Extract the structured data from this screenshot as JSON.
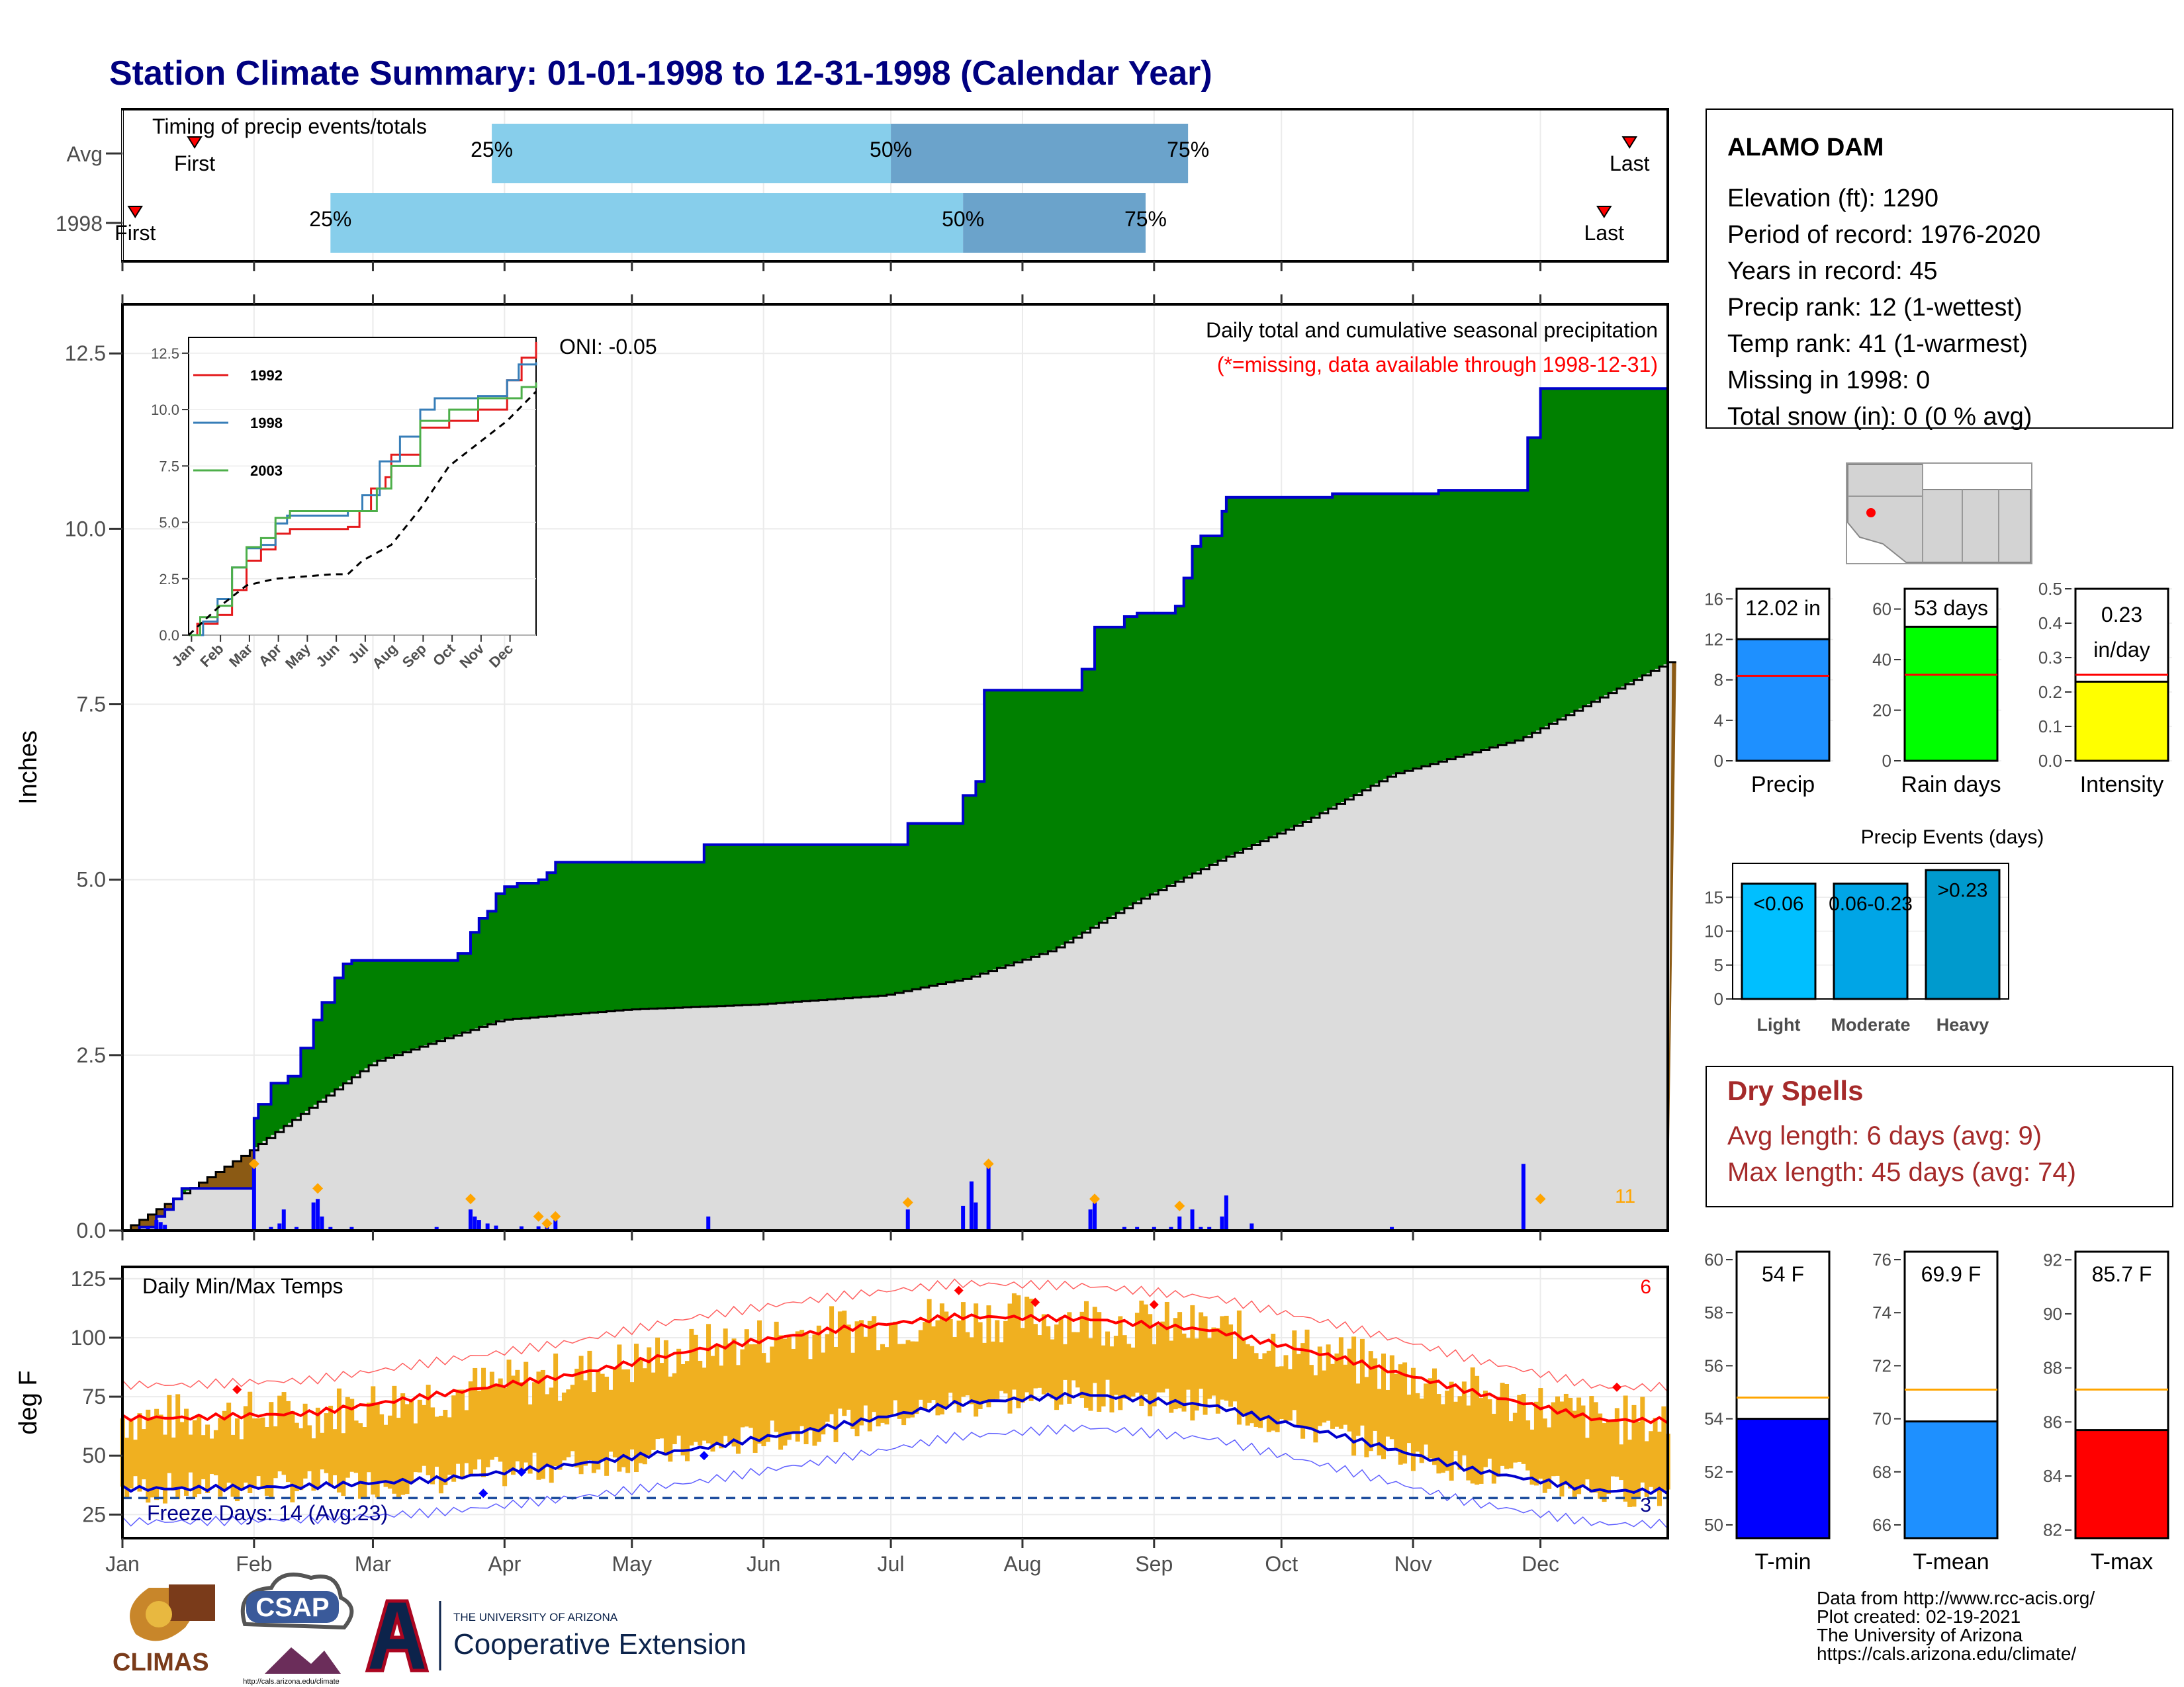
{
  "title": "Station Climate Summary: 01-01-1998 to 12-31-1998 (Calendar Year)",
  "colors": {
    "title": "#000080",
    "green_fill": "#008000",
    "cum_line": "#0000cd",
    "normal_fill": "#dcdcdc",
    "deficit_fill": "#8b5a14",
    "bar_daily": "#0000ff",
    "marker": "#ffa500",
    "temp_bar": "#f0b020",
    "tmax_line": "#ff0000",
    "tmin_line": "#0000cd",
    "dry_red": "#a52a2a",
    "q_light": "#87ceeb",
    "q_dark": "#6ba3cb"
  },
  "timing": {
    "title": "Timing of precip events/totals",
    "rows": [
      {
        "label": "Avg",
        "first_label": "First",
        "last_label": "Last",
        "first_day": 18,
        "last_day": 356,
        "q25": 88,
        "q50": 182,
        "q75": 252,
        "q25_label": "25%",
        "q50_label": "50%",
        "q75_label": "75%"
      },
      {
        "label": "1998",
        "first_label": "First",
        "last_label": "Last",
        "first_day": 4,
        "last_day": 350,
        "q25": 50,
        "q50": 199,
        "q75": 242,
        "q25_label": "25%",
        "q50_label": "50%",
        "q75_label": "75%"
      }
    ]
  },
  "station": {
    "name": "ALAMO DAM",
    "lines": [
      "Elevation (ft): 1290",
      "Period of record: 1976-2020",
      "Years in record: 45",
      "Precip rank: 12 (1-wettest)",
      "Temp rank: 41 (1-warmest)",
      "Missing in 1998: 0",
      "Total snow (in): 0 (0 % avg)"
    ]
  },
  "precip_panel": {
    "ylabel": "Inches",
    "yticks": [
      "0.0",
      "2.5",
      "5.0",
      "7.5",
      "10.0",
      "12.5"
    ],
    "header": "Daily total and cumulative seasonal precipitation",
    "missing_note": "(*=missing, data available through 1998-12-31)",
    "oni": "ONI: -0.05",
    "count_label": "11"
  },
  "inset": {
    "yticks": [
      "0.0",
      "2.5",
      "5.0",
      "7.5",
      "10.0",
      "12.5"
    ],
    "xticks": [
      "Jan",
      "Feb",
      "Mar",
      "Apr",
      "May",
      "Jun",
      "Jul",
      "Aug",
      "Sep",
      "Oct",
      "Nov",
      "Dec"
    ],
    "legend": [
      {
        "name": "1992",
        "color": "#e41a1c"
      },
      {
        "name": "1998",
        "color": "#377eb8"
      },
      {
        "name": "2003",
        "color": "#4daf4a"
      }
    ]
  },
  "temp_panel": {
    "ylabel": "deg F",
    "yticks": [
      "25",
      "50",
      "75",
      "100",
      "125"
    ],
    "title": "Daily Min/Max Temps",
    "freeze": "Freeze Days: 14 (Avg:23)",
    "count_top": "6",
    "count_bottom": "3"
  },
  "months": [
    "Jan",
    "Feb",
    "Mar",
    "Apr",
    "May",
    "Jun",
    "Jul",
    "Aug",
    "Sep",
    "Oct",
    "Nov",
    "Dec"
  ],
  "chart_data": [
    {
      "type": "area",
      "title": "Daily total and cumulative seasonal precipitation",
      "ylabel": "Inches",
      "ylim": [
        0,
        13.2
      ],
      "cumulative_1998_steps": [
        [
          1,
          0.0
        ],
        [
          5,
          0.05
        ],
        [
          9,
          0.2
        ],
        [
          11,
          0.3
        ],
        [
          13,
          0.45
        ],
        [
          15,
          0.6
        ],
        [
          32,
          1.6
        ],
        [
          33,
          1.8
        ],
        [
          36,
          2.1
        ],
        [
          40,
          2.2
        ],
        [
          43,
          2.6
        ],
        [
          46,
          3.0
        ],
        [
          48,
          3.25
        ],
        [
          51,
          3.6
        ],
        [
          53,
          3.8
        ],
        [
          55,
          3.85
        ],
        [
          74,
          3.85
        ],
        [
          80,
          3.95
        ],
        [
          83,
          4.25
        ],
        [
          85,
          4.45
        ],
        [
          87,
          4.55
        ],
        [
          89,
          4.8
        ],
        [
          91,
          4.9
        ],
        [
          94,
          4.95
        ],
        [
          99,
          5.0
        ],
        [
          101,
          5.1
        ],
        [
          103,
          5.25
        ],
        [
          138,
          5.5
        ],
        [
          186,
          5.8
        ],
        [
          199,
          6.2
        ],
        [
          202,
          6.4
        ],
        [
          204,
          7.7
        ],
        [
          227,
          8.0
        ],
        [
          230,
          8.6
        ],
        [
          237,
          8.75
        ],
        [
          240,
          8.8
        ],
        [
          249,
          8.9
        ],
        [
          251,
          9.3
        ],
        [
          253,
          9.75
        ],
        [
          255,
          9.9
        ],
        [
          260,
          10.25
        ],
        [
          261,
          10.45
        ],
        [
          286,
          10.5
        ],
        [
          311,
          10.55
        ],
        [
          332,
          11.3
        ],
        [
          335,
          12.0
        ],
        [
          365,
          12.0
        ]
      ],
      "average_cumulative_points": [
        [
          1,
          0.0
        ],
        [
          30,
          1.1
        ],
        [
          60,
          2.4
        ],
        [
          90,
          3.0
        ],
        [
          120,
          3.15
        ],
        [
          150,
          3.22
        ],
        [
          180,
          3.35
        ],
        [
          200,
          3.6
        ],
        [
          220,
          4.0
        ],
        [
          240,
          4.7
        ],
        [
          260,
          5.3
        ],
        [
          280,
          5.85
        ],
        [
          300,
          6.5
        ],
        [
          330,
          7.0
        ],
        [
          365,
          8.1
        ]
      ],
      "daily_bars_inches": [
        [
          7,
          0.05
        ],
        [
          9,
          0.15
        ],
        [
          10,
          0.12
        ],
        [
          11,
          0.08
        ],
        [
          32,
          0.9
        ],
        [
          36,
          0.05
        ],
        [
          38,
          0.1
        ],
        [
          39,
          0.3
        ],
        [
          42,
          0.05
        ],
        [
          46,
          0.4
        ],
        [
          47,
          0.45
        ],
        [
          48,
          0.2
        ],
        [
          50,
          0.05
        ],
        [
          55,
          0.05
        ],
        [
          75,
          0.05
        ],
        [
          83,
          0.3
        ],
        [
          84,
          0.2
        ],
        [
          85,
          0.15
        ],
        [
          87,
          0.1
        ],
        [
          89,
          0.07
        ],
        [
          95,
          0.06
        ],
        [
          99,
          0.06
        ],
        [
          101,
          0.1
        ],
        [
          103,
          0.15
        ],
        [
          139,
          0.2
        ],
        [
          186,
          0.3
        ],
        [
          199,
          0.35
        ],
        [
          201,
          0.7
        ],
        [
          202,
          0.4
        ],
        [
          205,
          0.95
        ],
        [
          229,
          0.3
        ],
        [
          230,
          0.5
        ],
        [
          237,
          0.05
        ],
        [
          240,
          0.05
        ],
        [
          244,
          0.05
        ],
        [
          248,
          0.05
        ],
        [
          250,
          0.2
        ],
        [
          253,
          0.3
        ],
        [
          255,
          0.05
        ],
        [
          257,
          0.05
        ],
        [
          260,
          0.2
        ],
        [
          261,
          0.5
        ],
        [
          267,
          0.1
        ],
        [
          300,
          0.05
        ],
        [
          331,
          0.95
        ]
      ]
    },
    {
      "type": "line",
      "title": "Daily Min/Max Temps",
      "ylabel": "deg F",
      "ylim": [
        15,
        130
      ],
      "monthly_tmax_avg": [
        66,
        68,
        76,
        84,
        95,
        103,
        109,
        108,
        103,
        91,
        77,
        65
      ],
      "monthly_tmin_avg": [
        36,
        37,
        40,
        46,
        53,
        62,
        72,
        76,
        71,
        58,
        44,
        35
      ],
      "freeze_line": 32
    }
  ],
  "bars": [
    {
      "name": "precip",
      "xlabel": "Precip",
      "value_label": "12.02 in",
      "value": 12.02,
      "avg": 8.4,
      "ymax": 17,
      "yticks": [
        "0",
        "4",
        "8",
        "12",
        "16"
      ],
      "tickvals": [
        0,
        4,
        8,
        12,
        16
      ],
      "color": "#1e90ff"
    },
    {
      "name": "rain-days",
      "xlabel": "Rain days",
      "value_label": "53 days",
      "value": 53,
      "avg": 34,
      "ymax": 68,
      "yticks": [
        "0",
        "20",
        "40",
        "60"
      ],
      "tickvals": [
        0,
        20,
        40,
        60
      ],
      "color": "#00ff00"
    },
    {
      "name": "intensity",
      "xlabel": "Intensity",
      "value_label": "0.23",
      "value_label2": "in/day",
      "value": 0.23,
      "avg": 0.25,
      "ymax": 0.5,
      "yticks": [
        "0.0",
        "0.1",
        "0.2",
        "0.3",
        "0.4",
        "0.5"
      ],
      "tickvals": [
        0,
        0.1,
        0.2,
        0.3,
        0.4,
        0.5
      ],
      "color": "#ffff00"
    }
  ],
  "events": {
    "title": "Precip Events (days)",
    "yticks": [
      "0",
      "5",
      "10",
      "15"
    ],
    "categories": [
      "Light",
      "Moderate",
      "Heavy"
    ],
    "labels": [
      "<0.06",
      "0.06-0.23",
      ">0.23"
    ],
    "values": [
      17,
      17,
      19
    ],
    "colors": [
      "#00bfff",
      "#00a5e6",
      "#009acd"
    ]
  },
  "dry_spells": {
    "title": "Dry Spells",
    "avg": "Avg length: 6 days (avg: 9)",
    "max": "Max length: 45 days (avg: 74)"
  },
  "temps": [
    {
      "name": "tmin",
      "xlabel": "T-min",
      "value_label": "54 F",
      "value": 54,
      "avg": 54.8,
      "ymin": 49.5,
      "ymax": 60.3,
      "yticks": [
        "50",
        "52",
        "54",
        "56",
        "58",
        "60"
      ],
      "tickvals": [
        50,
        52,
        54,
        56,
        58,
        60
      ],
      "color": "#0000ff"
    },
    {
      "name": "tmean",
      "xlabel": "T-mean",
      "value_label": "69.9 F",
      "value": 69.9,
      "avg": 71.1,
      "ymin": 65.5,
      "ymax": 76.3,
      "yticks": [
        "66",
        "68",
        "70",
        "72",
        "74",
        "76"
      ],
      "tickvals": [
        66,
        68,
        70,
        72,
        74,
        76
      ],
      "color": "#1e90ff"
    },
    {
      "name": "tmax",
      "xlabel": "T-max",
      "value_label": "85.7 F",
      "value": 85.7,
      "avg": 87.2,
      "ymin": 81.7,
      "ymax": 92.3,
      "yticks": [
        "82",
        "84",
        "86",
        "88",
        "90",
        "92"
      ],
      "tickvals": [
        82,
        84,
        86,
        88,
        90,
        92
      ],
      "color": "#ff0000"
    }
  ],
  "footer": {
    "lines": [
      "Data from http://www.rcc-acis.org/",
      "Plot created: 02-19-2021",
      "The University of Arizona",
      "https://cals.arizona.edu/climate/"
    ],
    "logo1": "CLIMAS",
    "logo2": "CSAP",
    "logo2_url": "http://cals.arizona.edu/climate",
    "logo3_small": "THE UNIVERSITY OF ARIZONA",
    "logo3_big": "Cooperative Extension"
  }
}
